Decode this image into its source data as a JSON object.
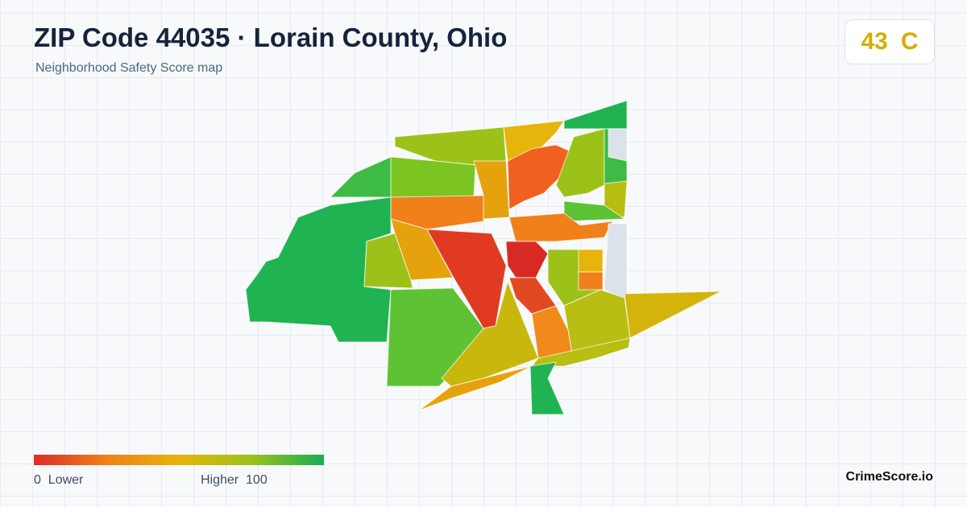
{
  "header": {
    "title": "ZIP Code 44035 · Lorain County, Ohio",
    "subtitle": "Neighborhood Safety Score map"
  },
  "score": {
    "value": 43,
    "grade": "C"
  },
  "legend": {
    "min": 0,
    "min_label": "Lower",
    "max_label": "Higher",
    "max": 100
  },
  "footer": {
    "brand": "CrimeScore.io"
  }
}
